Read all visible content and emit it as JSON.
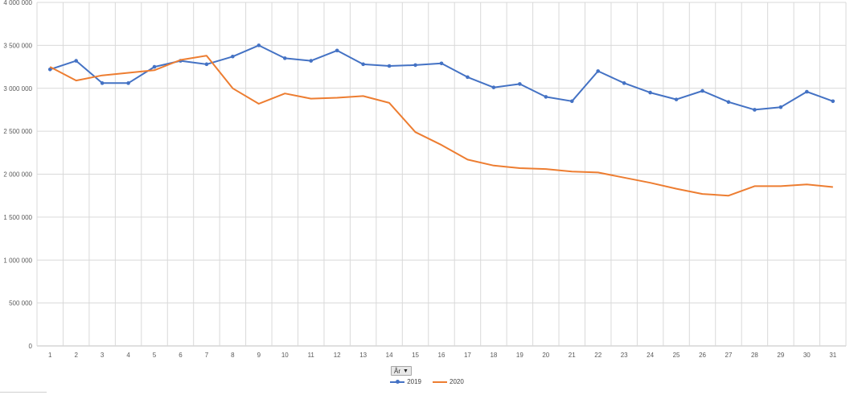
{
  "filter_button": {
    "label": "År",
    "icon": "dropdown-arrow-icon"
  },
  "chart_data": {
    "type": "line",
    "title": "",
    "xlabel": "",
    "ylabel": "",
    "ylim": [
      0,
      4000000
    ],
    "y_ticks": [
      "0",
      "500 000",
      "1 000 000",
      "1 500 000",
      "2 000 000",
      "2 500 000",
      "3 000 000",
      "3 500 000",
      "4 000 000"
    ],
    "y_tick_values": [
      0,
      500000,
      1000000,
      1500000,
      2000000,
      2500000,
      3000000,
      3500000,
      4000000
    ],
    "x": [
      1,
      2,
      3,
      4,
      5,
      6,
      7,
      8,
      9,
      10,
      11,
      12,
      13,
      14,
      15,
      16,
      17,
      18,
      19,
      20,
      21,
      22,
      23,
      24,
      25,
      26,
      27,
      28,
      29,
      30,
      31
    ],
    "grid": true,
    "legend_position": "bottom",
    "series": [
      {
        "name": "2019",
        "color": "#4472c4",
        "markers": true,
        "values": [
          3220000,
          3320000,
          3060000,
          3060000,
          3250000,
          3320000,
          3280000,
          3370000,
          3500000,
          3350000,
          3320000,
          3440000,
          3280000,
          3260000,
          3270000,
          3290000,
          3130000,
          3010000,
          3050000,
          2900000,
          2850000,
          3200000,
          3060000,
          2950000,
          2870000,
          2970000,
          2840000,
          2750000,
          2780000,
          2960000,
          2850000
        ]
      },
      {
        "name": "2020",
        "color": "#ed7d31",
        "markers": false,
        "values": [
          3250000,
          3090000,
          3150000,
          3180000,
          3210000,
          3330000,
          3380000,
          3000000,
          2820000,
          2940000,
          2880000,
          2890000,
          2910000,
          2830000,
          2490000,
          2340000,
          2170000,
          2100000,
          2070000,
          2060000,
          2030000,
          2020000,
          1960000,
          1900000,
          1830000,
          1770000,
          1750000,
          1860000,
          1860000,
          1880000,
          1850000
        ]
      }
    ]
  }
}
